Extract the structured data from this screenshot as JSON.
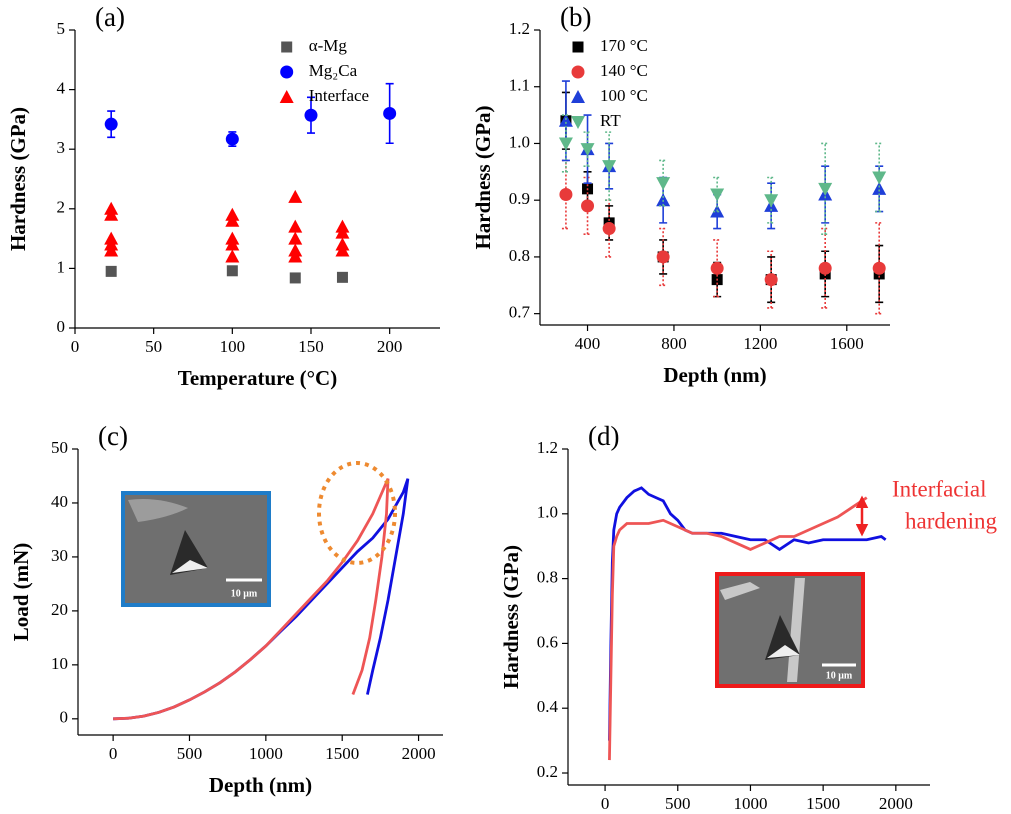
{
  "chart_data": [
    {
      "type": "scatter",
      "panel_label": "(a)",
      "x_label": "Temperature (°C)",
      "y_label": "Hardness (GPa)",
      "xlim": [
        0,
        232
      ],
      "ylim": [
        0,
        5
      ],
      "xticks": [
        0,
        50,
        100,
        150,
        200
      ],
      "yticks": [
        0,
        1,
        2,
        3,
        4,
        5
      ],
      "legend": "upper center",
      "legend_colored_text": true,
      "series": [
        {
          "name": "α-Mg",
          "color": "#555555",
          "marker": "square",
          "x": [
            23,
            100,
            140,
            170
          ],
          "values": [
            0.95,
            0.96,
            0.84,
            0.85
          ]
        },
        {
          "name": "Mg₂Ca",
          "color": "#0000ff",
          "marker": "circle",
          "x": [
            23,
            100,
            150,
            200
          ],
          "values": [
            3.42,
            3.17,
            3.57,
            3.6
          ],
          "errors": [
            0.22,
            0.12,
            0.3,
            0.5
          ]
        },
        {
          "name": "Interface",
          "color": "#ff0000",
          "marker": "triangle",
          "x": [
            23,
            23,
            23,
            23,
            23,
            100,
            100,
            100,
            100,
            100,
            140,
            140,
            140,
            140,
            140,
            170,
            170,
            170,
            170
          ],
          "values": [
            2.0,
            1.9,
            1.5,
            1.4,
            1.3,
            1.9,
            1.8,
            1.5,
            1.4,
            1.2,
            2.2,
            1.7,
            1.5,
            1.3,
            1.2,
            1.7,
            1.6,
            1.4,
            1.3
          ]
        }
      ]
    },
    {
      "type": "scatter",
      "panel_label": "(b)",
      "x_label": "Depth (nm)",
      "y_label": "Hardness (GPa)",
      "xlim": [
        180,
        1800
      ],
      "ylim": [
        0.68,
        1.2
      ],
      "xticks": [
        400,
        800,
        1200,
        1600
      ],
      "yticks": [
        0.7,
        0.8,
        0.9,
        {
          "value": 1,
          "label": "1.0"
        },
        1.1,
        1.2
      ],
      "legend": "upper left",
      "legend_colored_text": false,
      "series": [
        {
          "name": "170 °C",
          "color": "#000000",
          "marker": "square",
          "dashed": false,
          "x": [
            300,
            400,
            500,
            750,
            1000,
            1250,
            1500,
            1750
          ],
          "values": [
            1.04,
            0.92,
            0.86,
            0.8,
            0.76,
            0.76,
            0.77,
            0.77
          ],
          "errors": [
            0.05,
            0.03,
            0.03,
            0.03,
            0.03,
            0.04,
            0.04,
            0.05
          ]
        },
        {
          "name": "140 °C",
          "color": "#e83a3a",
          "marker": "circle",
          "dashed": true,
          "x": [
            300,
            400,
            500,
            750,
            1000,
            1250,
            1500,
            1750
          ],
          "values": [
            0.91,
            0.89,
            0.85,
            0.8,
            0.78,
            0.76,
            0.78,
            0.78
          ],
          "errors": [
            0.06,
            0.05,
            0.05,
            0.05,
            0.05,
            0.05,
            0.07,
            0.08
          ]
        },
        {
          "name": "100 °C",
          "color": "#1f3fd8",
          "marker": "triangle",
          "dashed": false,
          "x": [
            300,
            400,
            500,
            750,
            1000,
            1250,
            1500,
            1750
          ],
          "values": [
            1.04,
            0.99,
            0.96,
            0.9,
            0.88,
            0.89,
            0.91,
            0.92
          ],
          "errors": [
            0.07,
            0.06,
            0.04,
            0.04,
            0.03,
            0.04,
            0.05,
            0.04
          ]
        },
        {
          "name": "RT",
          "color": "#5fb88a",
          "marker": "triangle-down",
          "dashed": true,
          "x": [
            300,
            400,
            500,
            750,
            1000,
            1250,
            1500,
            1750
          ],
          "values": [
            1.0,
            0.99,
            0.96,
            0.93,
            0.91,
            0.9,
            0.92,
            0.94
          ],
          "errors": [
            0.05,
            0.03,
            0.06,
            0.04,
            0.03,
            0.04,
            0.08,
            0.06
          ]
        }
      ]
    },
    {
      "type": "line",
      "panel_label": "(c)",
      "x_label": "Depth (nm)",
      "y_label": "Load (mN)",
      "inset_label": "10 μm",
      "xlim": [
        -230,
        2160
      ],
      "ylim": [
        -3,
        50
      ],
      "xticks": [
        0,
        500,
        1000,
        1500,
        2000
      ],
      "yticks": [
        0,
        10,
        20,
        30,
        40,
        50
      ],
      "series": [
        {
          "color": "#1010e0",
          "x": [
            0,
            100,
            200,
            300,
            400,
            500,
            600,
            700,
            800,
            900,
            1000,
            1100,
            1200,
            1300,
            1400,
            1500,
            1600,
            1700,
            1800,
            1900,
            1930,
            1900,
            1850,
            1800,
            1750,
            1700,
            1665
          ],
          "values": [
            0,
            0.1,
            0.5,
            1.2,
            2.2,
            3.5,
            5,
            6.7,
            8.7,
            11,
            13.5,
            16.3,
            19,
            22,
            25,
            28,
            31,
            33.5,
            37,
            42,
            44.5,
            38,
            30,
            22,
            15,
            9,
            4.5
          ]
        },
        {
          "color": "#ee5555",
          "x": [
            0,
            100,
            200,
            300,
            400,
            500,
            600,
            700,
            800,
            900,
            1000,
            1100,
            1200,
            1300,
            1400,
            1500,
            1600,
            1700,
            1800,
            1790,
            1760,
            1720,
            1680,
            1630,
            1570
          ],
          "values": [
            0,
            0.1,
            0.5,
            1.2,
            2.2,
            3.5,
            5,
            6.7,
            8.7,
            11,
            13.5,
            16.5,
            19.5,
            22.5,
            25.5,
            29,
            33,
            38,
            44.5,
            38,
            30,
            22,
            15,
            9,
            4.5
          ]
        }
      ]
    },
    {
      "type": "line",
      "panel_label": "(d)",
      "x_label": "Depth (nm)",
      "y_label": "Hardness (GPa)",
      "inset_label": "10 μm",
      "annotation": [
        "Interfacial",
        "hardening"
      ],
      "xlim": [
        -255,
        2235
      ],
      "ylim": [
        0.163,
        1.2
      ],
      "xticks": [
        0,
        500,
        1000,
        1500,
        2000
      ],
      "yticks": [
        0.2,
        0.4,
        0.6,
        0.8,
        {
          "value": 1,
          "label": "1.0"
        },
        1.2
      ],
      "series": [
        {
          "color": "#1010e0",
          "x": [
            30,
            40,
            50,
            60,
            80,
            100,
            150,
            200,
            250,
            300,
            350,
            400,
            450,
            500,
            550,
            600,
            700,
            800,
            900,
            1000,
            1100,
            1200,
            1300,
            1400,
            1500,
            1600,
            1700,
            1800,
            1900,
            1930
          ],
          "values": [
            0.3,
            0.6,
            0.85,
            0.95,
            1.0,
            1.02,
            1.05,
            1.07,
            1.08,
            1.06,
            1.05,
            1.04,
            1.0,
            0.98,
            0.95,
            0.94,
            0.94,
            0.94,
            0.93,
            0.92,
            0.92,
            0.89,
            0.92,
            0.91,
            0.92,
            0.92,
            0.92,
            0.92,
            0.93,
            0.92
          ]
        },
        {
          "color": "#ee5555",
          "x": [
            30,
            40,
            50,
            60,
            80,
            100,
            150,
            200,
            300,
            400,
            500,
            600,
            700,
            800,
            900,
            1000,
            1100,
            1200,
            1300,
            1400,
            1500,
            1600,
            1700,
            1800
          ],
          "values": [
            0.24,
            0.5,
            0.75,
            0.9,
            0.93,
            0.95,
            0.97,
            0.97,
            0.97,
            0.98,
            0.96,
            0.94,
            0.94,
            0.93,
            0.91,
            0.89,
            0.91,
            0.93,
            0.93,
            0.95,
            0.97,
            0.99,
            1.02,
            1.05
          ]
        }
      ]
    }
  ]
}
